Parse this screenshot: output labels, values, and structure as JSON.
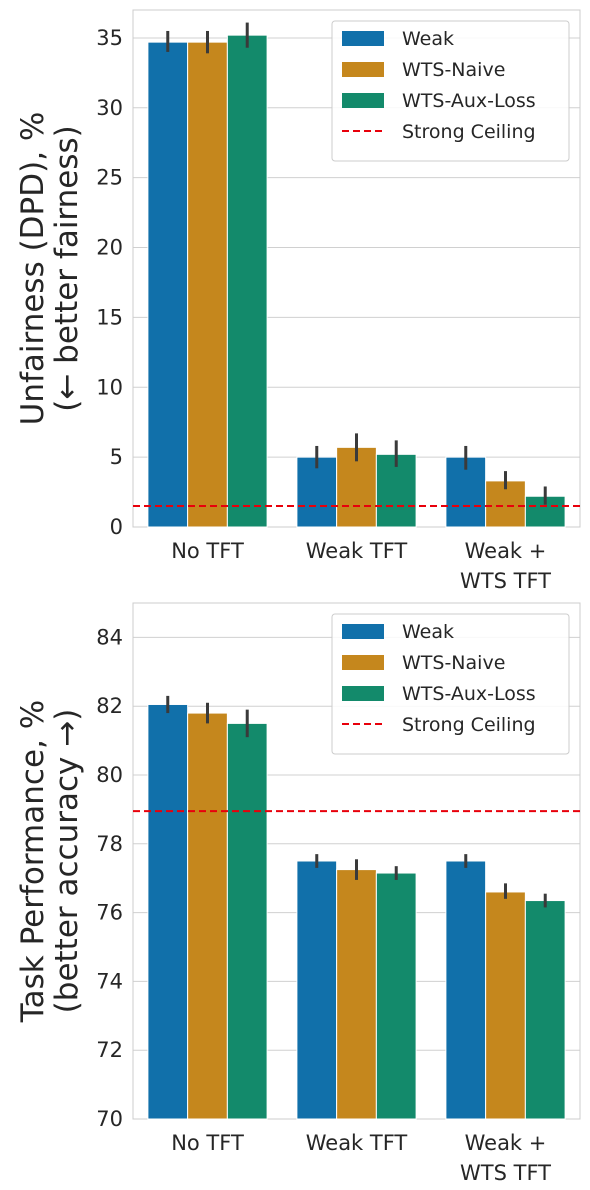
{
  "colors": {
    "weak": "#1170aa",
    "wts_naive": "#c5871d",
    "wts_aux_loss": "#138a6b",
    "ceiling": "#e8000b",
    "error_bar": "#3a3a3a",
    "grid": "#d0d0d0",
    "frame": "#cccccc"
  },
  "chart_data": [
    {
      "type": "bar",
      "ylabel_lines": [
        "Unfairness (DPD), %",
        "(← better fairness)"
      ],
      "xlabel": "",
      "categories": [
        [
          "No TFT"
        ],
        [
          "Weak TFT"
        ],
        [
          "Weak +",
          "WTS TFT"
        ]
      ],
      "ylim": [
        0,
        37
      ],
      "yticks": [
        0,
        5,
        10,
        15,
        20,
        25,
        30,
        35
      ],
      "ytick_labels": [
        "0",
        "5",
        "10",
        "15",
        "20",
        "25",
        "30",
        "35"
      ],
      "grid": true,
      "legend_position": "top-right",
      "series": [
        {
          "name": "Weak",
          "color_key": "weak",
          "values": [
            34.7,
            5.0,
            5.0
          ],
          "err_low": [
            34.0,
            4.2,
            4.1
          ],
          "err_high": [
            35.5,
            5.8,
            5.8
          ]
        },
        {
          "name": "WTS-Naive",
          "color_key": "wts_naive",
          "values": [
            34.7,
            5.7,
            3.3
          ],
          "err_low": [
            33.9,
            4.7,
            2.7
          ],
          "err_high": [
            35.5,
            6.7,
            4.0
          ]
        },
        {
          "name": "WTS-Aux-Loss",
          "color_key": "wts_aux_loss",
          "values": [
            35.2,
            5.2,
            2.2
          ],
          "err_low": [
            34.3,
            4.3,
            1.6
          ],
          "err_high": [
            36.1,
            6.2,
            2.9
          ]
        }
      ],
      "reference_line": {
        "name": "Strong Ceiling",
        "value": 1.5,
        "color_key": "ceiling"
      }
    },
    {
      "type": "bar",
      "ylabel_lines": [
        "Task Performance, %",
        "(better accuracy →)"
      ],
      "xlabel": "",
      "categories": [
        [
          "No TFT"
        ],
        [
          "Weak TFT"
        ],
        [
          "Weak +",
          "WTS TFT"
        ]
      ],
      "ylim": [
        70,
        85
      ],
      "yticks": [
        70,
        72,
        74,
        76,
        78,
        80,
        82,
        84
      ],
      "ytick_labels": [
        "70",
        "72",
        "74",
        "76",
        "78",
        "80",
        "82",
        "84"
      ],
      "grid": true,
      "legend_position": "top-right",
      "series": [
        {
          "name": "Weak",
          "color_key": "weak",
          "values": [
            82.05,
            77.5,
            77.5
          ],
          "err_low": [
            81.8,
            77.3,
            77.3
          ],
          "err_high": [
            82.3,
            77.7,
            77.7
          ]
        },
        {
          "name": "WTS-Naive",
          "color_key": "wts_naive",
          "values": [
            81.8,
            77.25,
            76.6
          ],
          "err_low": [
            81.5,
            76.95,
            76.4
          ],
          "err_high": [
            82.1,
            77.55,
            76.85
          ]
        },
        {
          "name": "WTS-Aux-Loss",
          "color_key": "wts_aux_loss",
          "values": [
            81.5,
            77.15,
            76.35
          ],
          "err_low": [
            81.1,
            76.95,
            76.15
          ],
          "err_high": [
            81.9,
            77.35,
            76.55
          ]
        }
      ],
      "reference_line": {
        "name": "Strong Ceiling",
        "value": 78.95,
        "color_key": "ceiling"
      }
    }
  ]
}
